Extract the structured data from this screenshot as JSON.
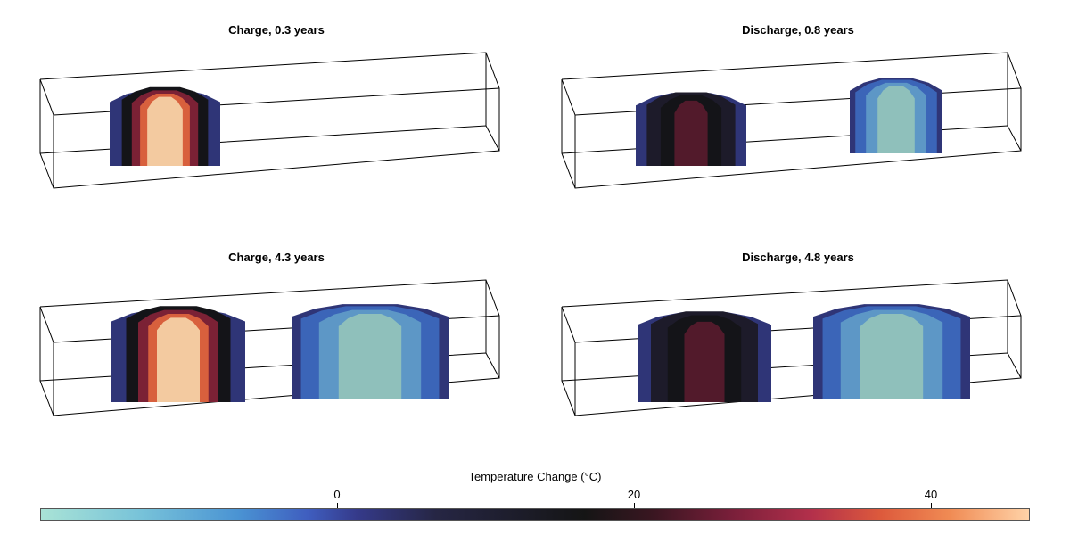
{
  "panels": [
    {
      "title": "Charge, 0.3 years",
      "hot": "high",
      "cold": null
    },
    {
      "title": "Discharge, 0.8 years",
      "hot": "low",
      "cold": "small"
    },
    {
      "title": "Charge, 4.3 years",
      "hot": "high",
      "cold": "large"
    },
    {
      "title": "Discharge, 4.8 years",
      "hot": "low",
      "cold": "large"
    }
  ],
  "colorbar": {
    "label": "Temperature Change (°C)",
    "ticks": [
      "0",
      "20",
      "40"
    ],
    "tick_values": [
      0,
      20,
      40
    ],
    "range": [
      -20,
      46
    ]
  },
  "colors": {
    "outer_blue": "#2f3577",
    "dark": "#141418",
    "hot_core": "#f3caa0",
    "mid_red": "#7b2135",
    "cold_outer": "#3b65b8",
    "cold_core": "#8fc0bb"
  }
}
